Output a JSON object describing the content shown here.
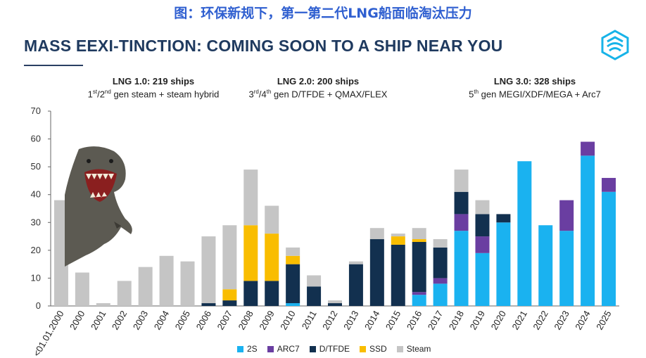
{
  "cn_title": "图：环保新规下，第一第二代LNG船面临淘汰压力",
  "main_title": "MASS EEXI-TINCTION: COMING SOON TO A SHIP NEAR YOU",
  "generations": [
    {
      "title": "LNG 1.0: 219 ships",
      "sub_a": "1",
      "sup_a": "st",
      "sub_b": "/2",
      "sup_b": "nd",
      "sub_c": " gen steam + steam hybrid"
    },
    {
      "title": "LNG 2.0: 200 ships",
      "sub_a": "3",
      "sup_a": "rd",
      "sub_b": "/4",
      "sup_b": "th",
      "sub_c": " gen D/TFDE + QMAX/FLEX"
    },
    {
      "title": "LNG 3.0: 328 ships",
      "sub_a": "5",
      "sup_a": "th",
      "sub_b": "",
      "sup_b": "",
      "sub_c": " gen MEGI/XDF/MEGA + Arc7"
    }
  ],
  "chart_data": {
    "type": "bar",
    "stacked": true,
    "categories": [
      "<01.01.2000",
      "2000",
      "2001",
      "2002",
      "2003",
      "2004",
      "2005",
      "2006",
      "2007",
      "2008",
      "2009",
      "2010",
      "2011",
      "2012",
      "2013",
      "2014",
      "2015",
      "2016",
      "2017",
      "2018",
      "2019",
      "2020",
      "2021",
      "2022",
      "2023",
      "2024",
      "2025"
    ],
    "ylim": [
      0,
      70
    ],
    "yticks": [
      0,
      10,
      20,
      30,
      40,
      50,
      60,
      70
    ],
    "series": [
      {
        "name": "2S",
        "color": "#1ab2f0",
        "values": [
          0,
          0,
          0,
          0,
          0,
          0,
          0,
          0,
          0,
          0,
          0,
          1,
          0,
          0,
          0,
          0,
          0,
          4,
          8,
          27,
          19,
          30,
          52,
          29,
          27,
          54,
          41
        ]
      },
      {
        "name": "ARC7",
        "color": "#6a3ea1",
        "values": [
          0,
          0,
          0,
          0,
          0,
          0,
          0,
          0,
          0,
          0,
          0,
          0,
          0,
          0,
          0,
          0,
          0,
          1,
          2,
          6,
          6,
          0,
          0,
          0,
          11,
          5,
          5
        ]
      },
      {
        "name": "D/TFDE",
        "color": "#12304f",
        "values": [
          0,
          0,
          0,
          0,
          0,
          0,
          0,
          1,
          2,
          9,
          9,
          14,
          7,
          1,
          15,
          24,
          22,
          18,
          11,
          8,
          8,
          3,
          0,
          0,
          0,
          0,
          0
        ]
      },
      {
        "name": "SSD",
        "color": "#f9bd00",
        "values": [
          0,
          0,
          0,
          0,
          0,
          0,
          0,
          0,
          4,
          20,
          17,
          3,
          0,
          0,
          0,
          0,
          3,
          1,
          0,
          0,
          0,
          0,
          0,
          0,
          0,
          0,
          0
        ]
      },
      {
        "name": "Steam",
        "color": "#c5c5c5",
        "values": [
          38,
          12,
          1,
          9,
          14,
          18,
          16,
          24,
          23,
          20,
          10,
          3,
          4,
          1,
          1,
          4,
          1,
          4,
          3,
          8,
          5,
          0,
          0,
          0,
          0,
          0,
          0
        ]
      }
    ]
  }
}
